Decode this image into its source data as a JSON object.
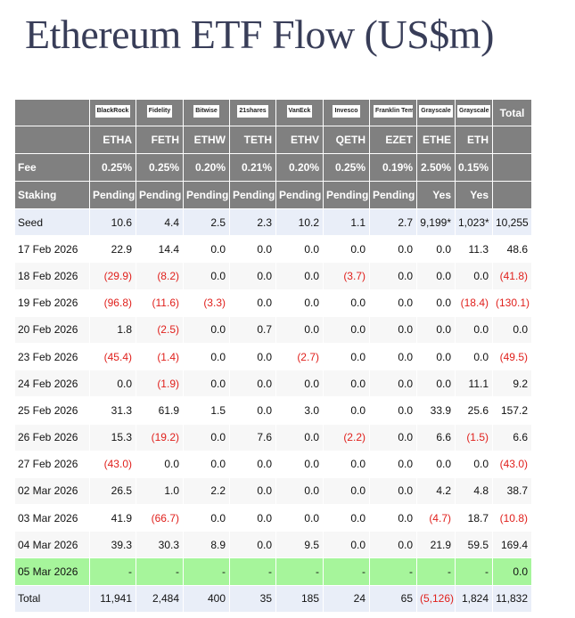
{
  "title": "Ethereum ETF Flow (US$m)",
  "table": {
    "issuers": [
      "BlackRock",
      "Fidelity",
      "Bitwise",
      "21shares",
      "VanEck",
      "Invesco",
      "Franklin Templeton",
      "Grayscale",
      "Grayscale"
    ],
    "total_header": "Total",
    "tickers": [
      "ETHA",
      "FETH",
      "ETHW",
      "TETH",
      "ETHV",
      "QETH",
      "EZET",
      "ETHE",
      "ETH"
    ],
    "fee": {
      "label": "Fee",
      "cells": [
        "0.25%",
        "0.25%",
        "0.20%",
        "0.21%",
        "0.20%",
        "0.25%",
        "0.19%",
        "2.50%",
        "0.15%"
      ]
    },
    "staking": {
      "label": "Staking",
      "cells": [
        "Pending",
        "Pending",
        "Pending",
        "Pending",
        "Pending",
        "Pending",
        "Pending",
        "Yes",
        "Yes"
      ]
    },
    "rows": [
      {
        "label": "Seed",
        "cells": [
          "10.6",
          "4.4",
          "2.5",
          "2.3",
          "10.2",
          "1.1",
          "2.7",
          "9,199*",
          "1,023*",
          "10,255"
        ]
      },
      {
        "label": "17 Feb 2026",
        "cells": [
          "22.9",
          "14.4",
          "0.0",
          "0.0",
          "0.0",
          "0.0",
          "0.0",
          "0.0",
          "11.3",
          "48.6"
        ]
      },
      {
        "label": "18 Feb 2026",
        "cells": [
          "(29.9)",
          "(8.2)",
          "0.0",
          "0.0",
          "0.0",
          "(3.7)",
          "0.0",
          "0.0",
          "0.0",
          "(41.8)"
        ]
      },
      {
        "label": "19 Feb 2026",
        "cells": [
          "(96.8)",
          "(11.6)",
          "(3.3)",
          "0.0",
          "0.0",
          "0.0",
          "0.0",
          "0.0",
          "(18.4)",
          "(130.1)"
        ]
      },
      {
        "label": "20 Feb 2026",
        "cells": [
          "1.8",
          "(2.5)",
          "0.0",
          "0.7",
          "0.0",
          "0.0",
          "0.0",
          "0.0",
          "0.0",
          "0.0"
        ]
      },
      {
        "label": "23 Feb 2026",
        "cells": [
          "(45.4)",
          "(1.4)",
          "0.0",
          "0.0",
          "(2.7)",
          "0.0",
          "0.0",
          "0.0",
          "0.0",
          "(49.5)"
        ]
      },
      {
        "label": "24 Feb 2026",
        "cells": [
          "0.0",
          "(1.9)",
          "0.0",
          "0.0",
          "0.0",
          "0.0",
          "0.0",
          "0.0",
          "11.1",
          "9.2"
        ]
      },
      {
        "label": "25 Feb 2026",
        "cells": [
          "31.3",
          "61.9",
          "1.5",
          "0.0",
          "3.0",
          "0.0",
          "0.0",
          "33.9",
          "25.6",
          "157.2"
        ]
      },
      {
        "label": "26 Feb 2026",
        "cells": [
          "15.3",
          "(19.2)",
          "0.0",
          "7.6",
          "0.0",
          "(2.2)",
          "0.0",
          "6.6",
          "(1.5)",
          "6.6"
        ]
      },
      {
        "label": "27 Feb 2026",
        "cells": [
          "(43.0)",
          "0.0",
          "0.0",
          "0.0",
          "0.0",
          "0.0",
          "0.0",
          "0.0",
          "0.0",
          "(43.0)"
        ]
      },
      {
        "label": "02 Mar 2026",
        "cells": [
          "26.5",
          "1.0",
          "2.2",
          "0.0",
          "0.0",
          "0.0",
          "0.0",
          "4.2",
          "4.8",
          "38.7"
        ]
      },
      {
        "label": "03 Mar 2026",
        "cells": [
          "41.9",
          "(66.7)",
          "0.0",
          "0.0",
          "0.0",
          "0.0",
          "0.0",
          "(4.7)",
          "18.7",
          "(10.8)"
        ]
      },
      {
        "label": "04 Mar 2026",
        "cells": [
          "39.3",
          "30.3",
          "8.9",
          "0.0",
          "9.5",
          "0.0",
          "0.0",
          "21.9",
          "59.5",
          "169.4"
        ]
      },
      {
        "label": "05 Mar 2026",
        "cells": [
          "-",
          "-",
          "-",
          "-",
          "-",
          "-",
          "-",
          "-",
          "-",
          "0.0"
        ]
      },
      {
        "label": "Total",
        "cells": [
          "11,941",
          "2,484",
          "400",
          "35",
          "185",
          "24",
          "65",
          "(5,126)",
          "1,824",
          "11,832"
        ]
      }
    ]
  }
}
